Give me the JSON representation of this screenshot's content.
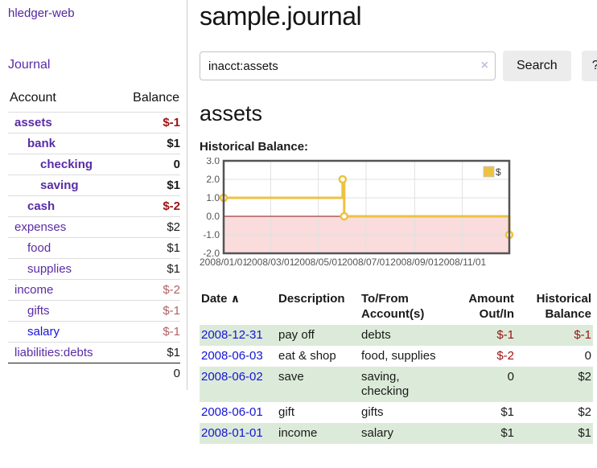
{
  "app": {
    "brand": "hledger-web",
    "nav_journal": "Journal"
  },
  "sidebar": {
    "header": {
      "account": "Account",
      "balance": "Balance"
    },
    "accounts": [
      {
        "name": "assets",
        "depth": 1,
        "emph": true,
        "blue": false,
        "balance": "$-1",
        "neg": "strong"
      },
      {
        "name": "bank",
        "depth": 2,
        "emph": true,
        "blue": false,
        "balance": "$1",
        "neg": null
      },
      {
        "name": "checking",
        "depth": 3,
        "emph": true,
        "blue": false,
        "balance": "0",
        "neg": null
      },
      {
        "name": "saving",
        "depth": 3,
        "emph": true,
        "blue": false,
        "balance": "$1",
        "neg": null
      },
      {
        "name": "cash",
        "depth": 2,
        "emph": true,
        "blue": false,
        "balance": "$-2",
        "neg": "strong"
      },
      {
        "name": "expenses",
        "depth": 1,
        "emph": false,
        "blue": false,
        "balance": "$2",
        "neg": null
      },
      {
        "name": "food",
        "depth": 2,
        "emph": false,
        "blue": false,
        "balance": "$1",
        "neg": null
      },
      {
        "name": "supplies",
        "depth": 2,
        "emph": false,
        "blue": false,
        "balance": "$1",
        "neg": null
      },
      {
        "name": "income",
        "depth": 1,
        "emph": false,
        "blue": false,
        "balance": "$-2",
        "neg": "muted"
      },
      {
        "name": "gifts",
        "depth": 2,
        "emph": false,
        "blue": false,
        "balance": "$-1",
        "neg": "muted"
      },
      {
        "name": "salary",
        "depth": 2,
        "emph": false,
        "blue": true,
        "balance": "$-1",
        "neg": "muted"
      },
      {
        "name": "liabilities:debts",
        "depth": 1,
        "emph": false,
        "blue": false,
        "balance": "$1",
        "neg": null
      }
    ],
    "total": "0"
  },
  "header": {
    "title": "sample.journal"
  },
  "search": {
    "value": "inacct:assets",
    "clear_icon": "×",
    "button_label": "Search",
    "help_label": "?"
  },
  "account_page": {
    "title": "assets",
    "chart_label": "Historical Balance:"
  },
  "chart_data": {
    "type": "line",
    "title": "Historical Balance",
    "style": "steps",
    "legend": "$",
    "legend_position": "top-right",
    "xrange": [
      "2008-01-01",
      "2008-12-31"
    ],
    "ylim": [
      -2,
      3
    ],
    "yticks": [
      "3.0",
      "2.0",
      "1.0",
      "0.0",
      "-1.0",
      "-2.0"
    ],
    "ytick_values": [
      3,
      2,
      1,
      0,
      -1,
      -2
    ],
    "xticks": [
      "2008/01/01",
      "2008/03/01",
      "2008/05/01",
      "2008/07/01",
      "2008/09/01",
      "2008/11/01"
    ],
    "grid": true,
    "series": [
      {
        "name": "$",
        "color": "#EDC240",
        "points": [
          [
            "2008-01-01",
            1
          ],
          [
            "2008-06-01",
            2
          ],
          [
            "2008-06-03",
            0
          ],
          [
            "2008-12-31",
            -1
          ]
        ]
      }
    ],
    "colors": {
      "line": "#EDC240",
      "negative_region": "#fadcdc",
      "zero_line": "#8b1010",
      "border": "#545454",
      "grid": "#e0e0e0",
      "tick_text": "#545454"
    }
  },
  "register": {
    "columns": [
      "Date",
      "Description",
      "To/From Account(s)",
      "Amount Out/In",
      "Historical Balance"
    ],
    "sort_icon": "∧",
    "rows": [
      {
        "date": "2008-12-31",
        "description": "pay off",
        "accounts": "debts",
        "amount": "$-1",
        "amount_neg": true,
        "balance": "$-1",
        "balance_neg": true
      },
      {
        "date": "2008-06-03",
        "description": "eat & shop",
        "accounts": "food, supplies",
        "amount": "$-2",
        "amount_neg": true,
        "balance": "0",
        "balance_neg": false
      },
      {
        "date": "2008-06-02",
        "description": "save",
        "accounts": "saving, checking",
        "amount": "0",
        "amount_neg": false,
        "balance": "$2",
        "balance_neg": false
      },
      {
        "date": "2008-06-01",
        "description": "gift",
        "accounts": "gifts",
        "amount": "$1",
        "amount_neg": false,
        "balance": "$2",
        "balance_neg": false
      },
      {
        "date": "2008-01-01",
        "description": "income",
        "accounts": "salary",
        "amount": "$1",
        "amount_neg": false,
        "balance": "$1",
        "balance_neg": false
      }
    ]
  }
}
